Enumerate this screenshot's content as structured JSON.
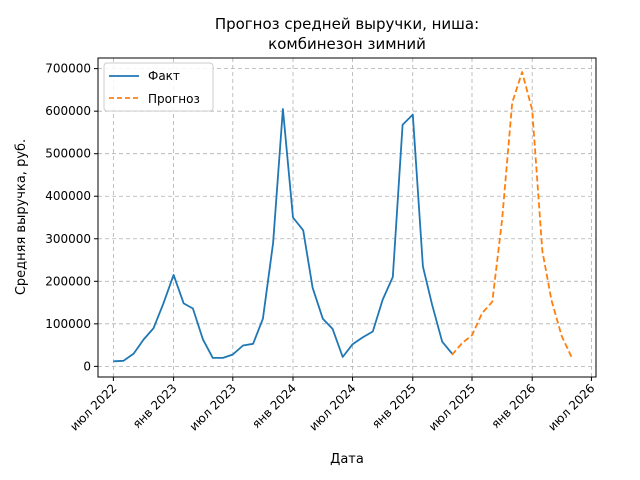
{
  "chart_data": {
    "type": "line",
    "title_lines": [
      "Прогноз средней выручки, ниша:",
      "комбинезон зимний"
    ],
    "xlabel": "Дата",
    "ylabel": "Средняя выручка, руб.",
    "ylim": [
      -25000,
      725000
    ],
    "xlim": [
      "2022-05-15",
      "2026-07-15"
    ],
    "x_ticks": [
      {
        "date": "2022-07-01",
        "label": "июл 2022"
      },
      {
        "date": "2023-01-01",
        "label": "янв 2023"
      },
      {
        "date": "2023-07-01",
        "label": "июл 2023"
      },
      {
        "date": "2024-01-01",
        "label": "янв 2024"
      },
      {
        "date": "2024-07-01",
        "label": "июл 2024"
      },
      {
        "date": "2025-01-01",
        "label": "янв 2025"
      },
      {
        "date": "2025-07-01",
        "label": "июл 2025"
      },
      {
        "date": "2026-01-01",
        "label": "янв 2026"
      },
      {
        "date": "2026-07-01",
        "label": "июл 2026"
      }
    ],
    "y_ticks": [
      {
        "value": 0,
        "label": "0"
      },
      {
        "value": 100000,
        "label": "100000"
      },
      {
        "value": 200000,
        "label": "200000"
      },
      {
        "value": 300000,
        "label": "300000"
      },
      {
        "value": 400000,
        "label": "400000"
      },
      {
        "value": 500000,
        "label": "500000"
      },
      {
        "value": 600000,
        "label": "600000"
      },
      {
        "value": 700000,
        "label": "700000"
      }
    ],
    "grid": true,
    "legend_position": "top-left",
    "series": [
      {
        "name": "Факт",
        "color": "#1f77b4",
        "style": "solid",
        "x": [
          "2022-07-01",
          "2022-08-01",
          "2022-09-01",
          "2022-10-01",
          "2022-11-01",
          "2022-12-01",
          "2023-01-01",
          "2023-02-01",
          "2023-03-01",
          "2023-04-01",
          "2023-05-01",
          "2023-06-01",
          "2023-07-01",
          "2023-08-01",
          "2023-09-01",
          "2023-10-01",
          "2023-11-01",
          "2023-12-01",
          "2024-01-01",
          "2024-02-01",
          "2024-03-01",
          "2024-04-01",
          "2024-05-01",
          "2024-06-01",
          "2024-07-01",
          "2024-08-01",
          "2024-09-01",
          "2024-10-01",
          "2024-11-01",
          "2024-12-01",
          "2025-01-01",
          "2025-02-01",
          "2025-03-01",
          "2025-04-01",
          "2025-05-01"
        ],
        "y": [
          12000,
          13000,
          30000,
          63000,
          90000,
          148000,
          215000,
          148000,
          136000,
          63000,
          20000,
          20000,
          28000,
          49000,
          53000,
          112000,
          290000,
          605000,
          350000,
          320000,
          185000,
          112000,
          88000,
          22000,
          52000,
          68000,
          82000,
          157000,
          210000,
          568000,
          592000,
          235000,
          145000,
          58000,
          30000
        ]
      },
      {
        "name": "Прогноз",
        "color": "#ff7f0e",
        "style": "dashed",
        "x": [
          "2025-05-01",
          "2025-06-01",
          "2025-07-01",
          "2025-08-01",
          "2025-09-01",
          "2025-10-01",
          "2025-11-01",
          "2025-12-01",
          "2026-01-01",
          "2026-02-01",
          "2026-03-01",
          "2026-04-01",
          "2026-05-01"
        ],
        "y": [
          27000,
          55000,
          73000,
          125000,
          152000,
          345000,
          620000,
          692000,
          603000,
          272000,
          155000,
          72000,
          22000
        ]
      }
    ]
  }
}
